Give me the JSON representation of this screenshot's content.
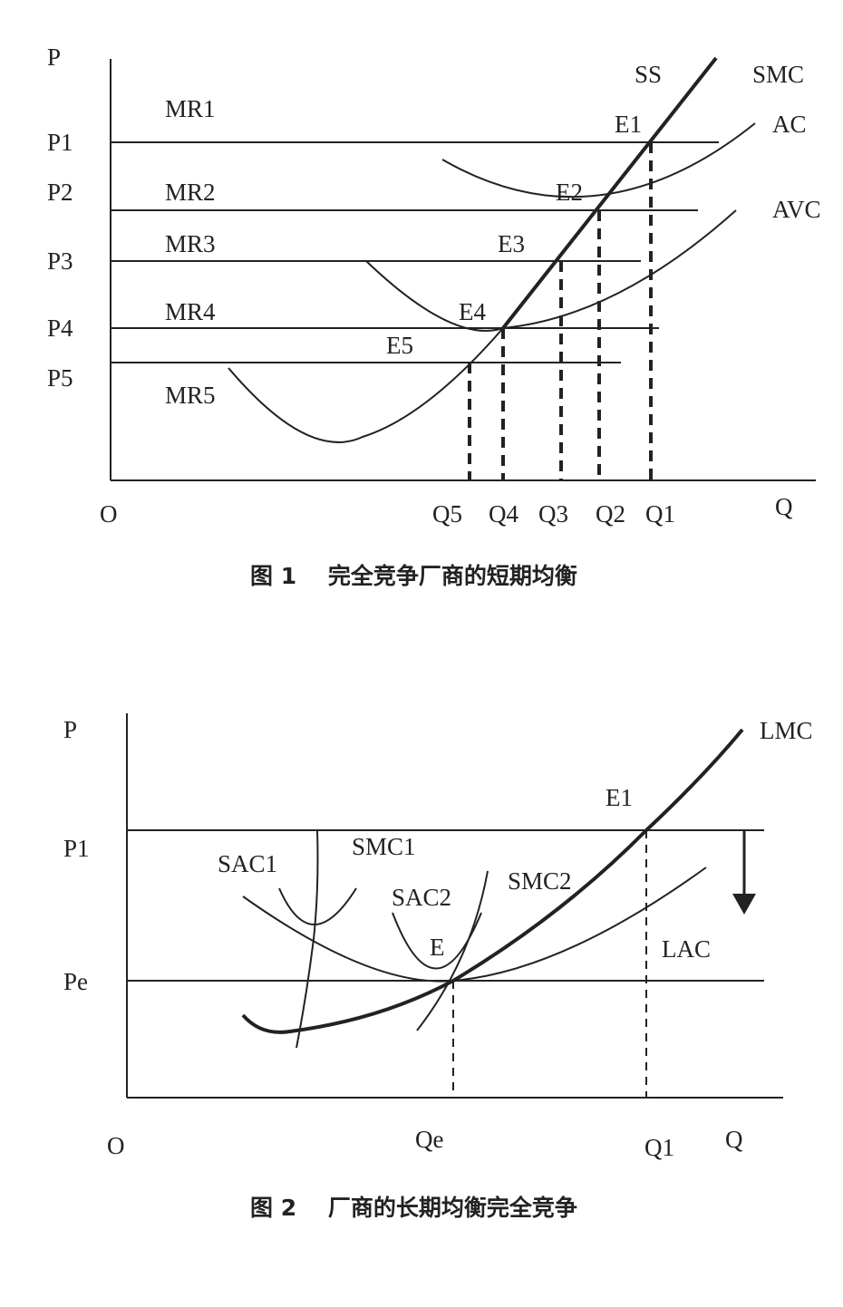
{
  "figure1": {
    "caption": "图 1    完全竞争厂商的短期均衡",
    "labels": {
      "p": "P",
      "p1": "P1",
      "p2": "P2",
      "p3": "P3",
      "p4": "P4",
      "p5": "P5",
      "o": "O",
      "q": "Q",
      "q5": "Q5",
      "q4": "Q4",
      "q3": "Q3",
      "q2": "Q2",
      "q1": "Q1",
      "mr1": "MR1",
      "mr2": "MR2",
      "mr3": "MR3",
      "mr4": "MR4",
      "mr5": "MR5",
      "e1": "E1",
      "e2": "E2",
      "e3": "E3",
      "e4": "E4",
      "e5": "E5",
      "ss": "SS",
      "smc": "SMC",
      "ac": "AC",
      "avc": "AVC"
    }
  },
  "figure2": {
    "caption": "图 2    厂商的长期均衡完全竞争",
    "labels": {
      "p": "P",
      "p1": "P1",
      "pe": "Pe",
      "o": "O",
      "qe": "Qe",
      "q1": "Q1",
      "q": "Q",
      "lmc": "LMC",
      "e1": "E1",
      "e": "E",
      "sac1": "SAC1",
      "smc1": "SMC1",
      "sac2": "SAC2",
      "smc2": "SMC2",
      "lac": "LAC"
    }
  }
}
